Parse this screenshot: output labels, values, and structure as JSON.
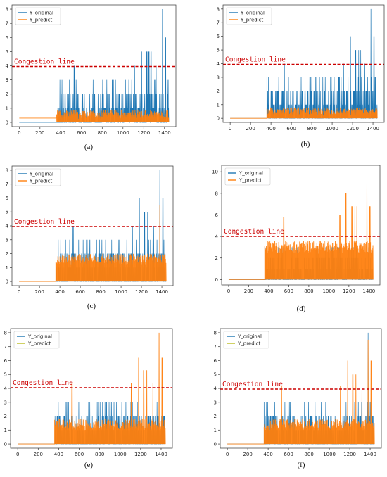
{
  "colors": {
    "original": "#1f77b4",
    "predict": "#ff7f0e",
    "predict_olive": "#bcbd22",
    "congestion": "#cc0000",
    "axis": "#333333"
  },
  "chart_data": [
    {
      "id": "a",
      "caption": "(a)",
      "type": "line",
      "xlim": [
        -70,
        1510
      ],
      "ylim": [
        -0.3,
        8.3
      ],
      "xticks": [
        0,
        200,
        400,
        600,
        800,
        1000,
        1200,
        1400
      ],
      "yticks": [
        0,
        1,
        2,
        3,
        4,
        5,
        6,
        7,
        8
      ],
      "congestion": {
        "label": "Congestion line",
        "y": 3.95
      },
      "series": [
        {
          "name": "Y_original",
          "color": "#1f77b4",
          "baseline": 0,
          "start_x": 360,
          "peaks": [
            [
              530,
              4
            ],
            [
              1110,
              4
            ],
            [
              1180,
              5
            ],
            [
              1230,
              5
            ],
            [
              1250,
              5
            ],
            [
              1270,
              5
            ],
            [
              1320,
              4
            ],
            [
              1380,
              8
            ],
            [
              1410,
              6
            ]
          ]
        },
        {
          "name": "Y_predict",
          "color": "#ff7f0e",
          "baseline": 0.3,
          "band": [
            0.2,
            0.9
          ],
          "start_x": 360
        }
      ]
    },
    {
      "id": "b",
      "caption": "(b)",
      "type": "line",
      "xlim": [
        -70,
        1510
      ],
      "ylim": [
        -0.3,
        8.3
      ],
      "xticks": [
        0,
        200,
        400,
        600,
        800,
        1000,
        1200,
        1400
      ],
      "yticks": [
        0,
        1,
        2,
        3,
        4,
        5,
        6,
        7,
        8
      ],
      "congestion": {
        "label": "Congestion line",
        "y": 3.95
      },
      "series": [
        {
          "name": "Y_original",
          "color": "#1f77b4",
          "baseline": 0,
          "start_x": 360,
          "peaks": [
            [
              530,
              4
            ],
            [
              1110,
              4
            ],
            [
              1180,
              6
            ],
            [
              1230,
              5
            ],
            [
              1260,
              5
            ],
            [
              1280,
              5
            ],
            [
              1320,
              4
            ],
            [
              1380,
              8
            ],
            [
              1410,
              6
            ]
          ]
        },
        {
          "name": "Y_predict",
          "color": "#ff7f0e",
          "baseline": 0,
          "band": [
            0.2,
            0.8
          ],
          "start_x": 360
        }
      ]
    },
    {
      "id": "c",
      "caption": "(c)",
      "type": "line",
      "xlim": [
        -70,
        1510
      ],
      "ylim": [
        -0.3,
        8.3
      ],
      "xticks": [
        0,
        200,
        400,
        600,
        800,
        1000,
        1200,
        1400
      ],
      "yticks": [
        0,
        1,
        2,
        3,
        4,
        5,
        6,
        7,
        8
      ],
      "congestion": {
        "label": "Congestion line",
        "y": 3.95
      },
      "series": [
        {
          "name": "Y_original",
          "color": "#1f77b4",
          "baseline": 0,
          "start_x": 360,
          "peaks": [
            [
              530,
              4
            ],
            [
              1110,
              4
            ],
            [
              1180,
              6
            ],
            [
              1230,
              5
            ],
            [
              1260,
              5
            ],
            [
              1320,
              4
            ],
            [
              1380,
              8
            ],
            [
              1410,
              6
            ]
          ]
        },
        {
          "name": "Y_predict",
          "color": "#ff7f0e",
          "baseline": 0,
          "band": [
            1.2,
            2.0
          ],
          "start_x": 360,
          "peaks": [
            [
              1380,
              5.5
            ]
          ]
        }
      ]
    },
    {
      "id": "d",
      "caption": "(d)",
      "type": "line",
      "xlim": [
        -70,
        1510
      ],
      "ylim": [
        -0.5,
        10.6
      ],
      "xticks": [
        0,
        200,
        400,
        600,
        800,
        1000,
        1200,
        1400
      ],
      "yticks": [
        0,
        2,
        4,
        6,
        8,
        10
      ],
      "congestion": {
        "label": "Congestion line",
        "y": 4.0
      },
      "series": [
        {
          "name": "Y_original",
          "color": "#1f77b4",
          "baseline": 0,
          "start_x": 360
        },
        {
          "name": "Y_predict",
          "color": "#ff7f0e",
          "baseline": 0,
          "band": [
            2.4,
            3.6
          ],
          "start_x": 360,
          "peaks": [
            [
              550,
              5.8
            ],
            [
              1110,
              6
            ],
            [
              1170,
              8
            ],
            [
              1230,
              6.8
            ],
            [
              1260,
              6.8
            ],
            [
              1280,
              6.8
            ],
            [
              1380,
              10.3
            ],
            [
              1410,
              6.8
            ]
          ]
        }
      ]
    },
    {
      "id": "e",
      "caption": "(e)",
      "type": "line",
      "xlim": [
        -70,
        1510
      ],
      "ylim": [
        -0.3,
        8.3
      ],
      "xticks": [
        0,
        200,
        400,
        600,
        800,
        1000,
        1200,
        1400
      ],
      "yticks": [
        0,
        1,
        2,
        3,
        4,
        5,
        6,
        7,
        8
      ],
      "congestion": {
        "label": "Congestion line",
        "y": 4.05
      },
      "series": [
        {
          "name": "Y_original",
          "color": "#1f77b4",
          "baseline": 0,
          "start_x": 360
        },
        {
          "name": "Y_predict",
          "color": "#bcbd22",
          "baseline": 0,
          "band": [
            1.0,
            1.8
          ],
          "start_x": 360,
          "peaks": [
            [
              530,
              4.4
            ],
            [
              1110,
              4.4
            ],
            [
              1180,
              6.2
            ],
            [
              1230,
              5.3
            ],
            [
              1260,
              5.3
            ],
            [
              1320,
              4.4
            ],
            [
              1380,
              8.0
            ],
            [
              1410,
              6.2
            ]
          ]
        }
      ]
    },
    {
      "id": "f",
      "caption": "(f)",
      "type": "line",
      "xlim": [
        -70,
        1510
      ],
      "ylim": [
        -0.3,
        8.3
      ],
      "xticks": [
        0,
        200,
        400,
        600,
        800,
        1000,
        1200,
        1400
      ],
      "yticks": [
        0,
        1,
        2,
        3,
        4,
        5,
        6,
        7,
        8
      ],
      "congestion": {
        "label": "Congestion line",
        "y": 3.95
      },
      "series": [
        {
          "name": "Y_original",
          "color": "#1f77b4",
          "baseline": 0,
          "start_x": 360,
          "peaks": [
            [
              1380,
              8
            ]
          ]
        },
        {
          "name": "Y_predict",
          "color": "#bcbd22",
          "baseline": 0,
          "band": [
            1.0,
            1.8
          ],
          "start_x": 360,
          "peaks": [
            [
              530,
              4.2
            ],
            [
              1110,
              4.2
            ],
            [
              1180,
              6.0
            ],
            [
              1230,
              5.0
            ],
            [
              1260,
              5.0
            ],
            [
              1320,
              4.2
            ],
            [
              1380,
              7.5
            ],
            [
              1410,
              6.0
            ]
          ]
        }
      ]
    }
  ]
}
